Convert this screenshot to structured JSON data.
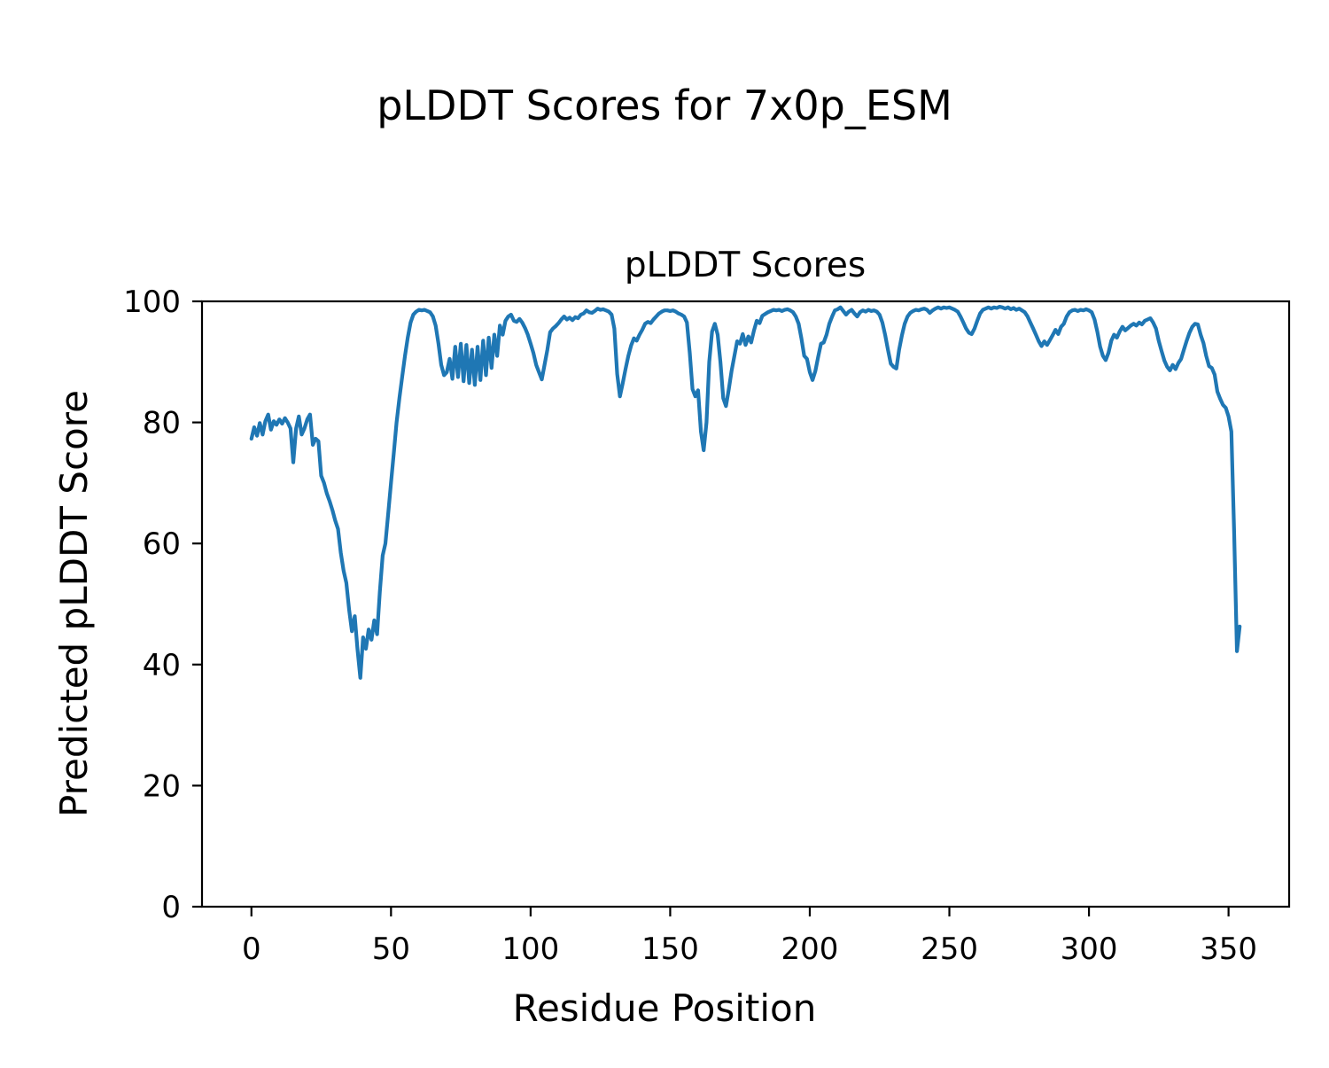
{
  "figure": {
    "title": "pLDDT Scores for 7x0p_ESM"
  },
  "chart_data": {
    "type": "line",
    "title": "pLDDT Scores for 7x0p_ESM",
    "axes_title": "pLDDT Scores",
    "xlabel": "Residue Position",
    "ylabel": "Predicted pLDDT Score",
    "xlim": [
      -17.7,
      371.7
    ],
    "ylim": [
      0,
      100
    ],
    "xticks": [
      0,
      50,
      100,
      150,
      200,
      250,
      300,
      350
    ],
    "yticks": [
      0,
      20,
      40,
      60,
      80,
      100
    ],
    "grid": false,
    "legend_position": "none",
    "line_color": "#1f77b4",
    "series": [
      {
        "name": "pLDDT",
        "x_start": 0,
        "x_step": 1,
        "values": [
          77.3,
          79.2,
          77.8,
          79.9,
          78.0,
          80.2,
          81.3,
          78.8,
          80.2,
          79.6,
          80.5,
          79.8,
          80.7,
          80.0,
          79.0,
          73.4,
          79.0,
          81.0,
          78.0,
          79.0,
          80.5,
          81.3,
          76.3,
          77.3,
          76.9,
          71.2,
          70.0,
          68.3,
          67.0,
          65.5,
          63.8,
          62.4,
          58.5,
          55.5,
          53.5,
          49.0,
          45.5,
          48.0,
          42.5,
          37.8,
          44.5,
          42.6,
          45.8,
          44.1,
          47.3,
          45.0,
          52.0,
          58.0,
          60.0,
          65.0,
          70.0,
          75.0,
          80.0,
          84.0,
          87.5,
          91.0,
          94.0,
          96.5,
          97.8,
          98.3,
          98.6,
          98.5,
          98.6,
          98.4,
          98.2,
          97.5,
          96.0,
          93.0,
          89.5,
          87.8,
          88.3,
          90.5,
          87.2,
          92.5,
          87.5,
          93.0,
          86.8,
          92.8,
          86.5,
          92.0,
          86.2,
          92.5,
          87.0,
          93.5,
          87.8,
          94.0,
          89.0,
          94.5,
          91.0,
          96.0,
          94.5,
          96.8,
          97.5,
          97.8,
          96.8,
          96.6,
          97.1,
          96.5,
          95.6,
          94.5,
          93.0,
          91.5,
          89.5,
          88.3,
          87.1,
          89.5,
          92.0,
          94.9,
          95.5,
          95.9,
          96.4,
          97.0,
          97.5,
          97.0,
          97.3,
          96.9,
          97.4,
          97.2,
          97.8,
          98.0,
          98.5,
          98.2,
          98.1,
          98.4,
          98.8,
          98.6,
          98.7,
          98.5,
          98.3,
          97.8,
          95.5,
          88.0,
          84.3,
          86.5,
          88.8,
          91.0,
          92.7,
          93.9,
          93.5,
          94.5,
          95.3,
          96.3,
          96.6,
          96.4,
          97.0,
          97.5,
          98.0,
          98.3,
          98.5,
          98.5,
          98.4,
          98.5,
          98.3,
          98.0,
          97.8,
          97.5,
          96.5,
          91.5,
          85.5,
          84.3,
          85.3,
          78.5,
          75.4,
          80.0,
          90.0,
          95.0,
          96.3,
          94.5,
          90.0,
          84.0,
          82.7,
          85.5,
          88.5,
          91.0,
          93.4,
          93.0,
          94.6,
          92.8,
          94.2,
          93.2,
          95.2,
          96.8,
          96.4,
          97.6,
          97.9,
          98.2,
          98.4,
          98.6,
          98.5,
          98.6,
          98.4,
          98.6,
          98.7,
          98.5,
          98.2,
          97.5,
          96.3,
          93.9,
          91.0,
          90.5,
          88.3,
          87.0,
          88.5,
          90.8,
          93.0,
          93.2,
          94.5,
          96.3,
          97.5,
          98.5,
          98.7,
          99.0,
          98.4,
          97.8,
          98.3,
          98.6,
          98.0,
          97.5,
          98.2,
          98.5,
          98.3,
          98.6,
          98.4,
          98.5,
          98.3,
          97.8,
          96.5,
          94.4,
          92.0,
          89.7,
          89.2,
          88.9,
          92.0,
          94.4,
          96.3,
          97.5,
          98.1,
          98.4,
          98.6,
          98.5,
          98.7,
          98.8,
          98.6,
          98.1,
          98.5,
          98.8,
          99.0,
          98.8,
          99.0,
          98.9,
          99.0,
          98.8,
          98.6,
          98.3,
          97.5,
          96.5,
          95.5,
          94.8,
          94.6,
          95.5,
          96.8,
          98.0,
          98.6,
          98.8,
          99.0,
          98.8,
          99.0,
          98.9,
          99.1,
          99.0,
          98.8,
          99.0,
          98.7,
          98.9,
          98.6,
          98.8,
          98.5,
          98.2,
          97.5,
          96.5,
          95.5,
          94.5,
          93.4,
          92.6,
          93.4,
          92.8,
          93.6,
          94.4,
          95.3,
          94.6,
          95.8,
          96.3,
          97.5,
          98.2,
          98.5,
          98.6,
          98.4,
          98.6,
          98.5,
          98.7,
          98.5,
          98.2,
          97.0,
          95.0,
          92.5,
          91.0,
          90.3,
          91.5,
          93.5,
          94.5,
          94.0,
          95.0,
          95.8,
          95.2,
          95.6,
          96.0,
          96.3,
          96.0,
          96.5,
          96.2,
          96.8,
          97.0,
          97.2,
          96.5,
          95.5,
          93.5,
          91.8,
          90.2,
          89.2,
          88.6,
          89.5,
          88.8,
          89.8,
          90.5,
          92.0,
          93.5,
          94.8,
          95.8,
          96.3,
          96.2,
          94.5,
          93.1,
          91.0,
          89.3,
          89.0,
          87.9,
          85.1,
          83.9,
          82.9,
          82.4,
          81.0,
          78.5,
          62.0,
          42.2,
          46.3
        ]
      }
    ]
  }
}
